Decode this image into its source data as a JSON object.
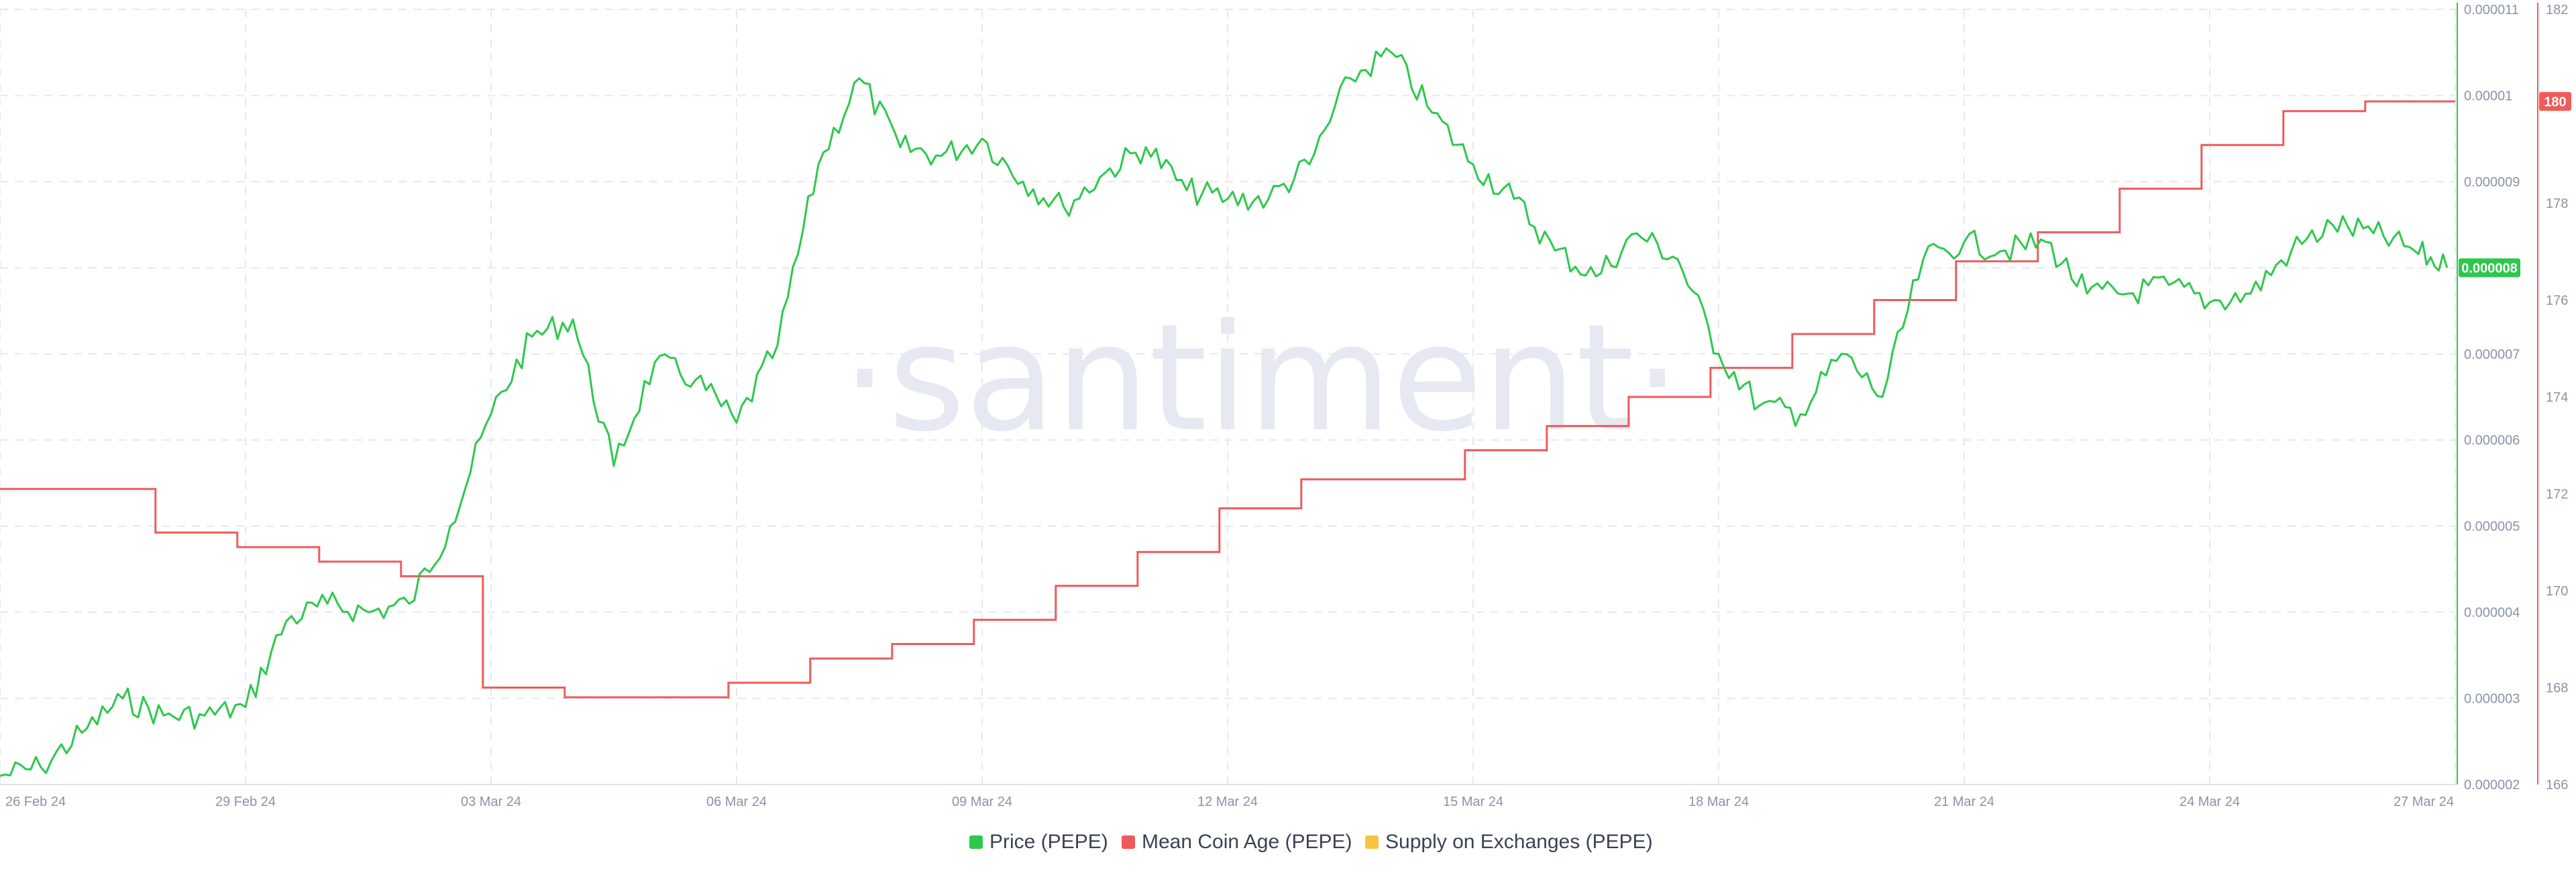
{
  "watermark": "·santiment·",
  "colors": {
    "price": "#2dc84d",
    "coin_age": "#f05a5a",
    "supply": "#f5c542",
    "grid": "#e6e8ee"
  },
  "legend": [
    {
      "label": "Price (PEPE)",
      "color": "#2dc84d"
    },
    {
      "label": "Mean Coin Age (PEPE)",
      "color": "#f05a5a"
    },
    {
      "label": "Supply on Exchanges (PEPE)",
      "color": "#f5c542"
    }
  ],
  "badges": {
    "price": "0.000008",
    "coin_age": "180"
  },
  "chart_data": {
    "type": "line",
    "x_ticks": [
      "26 Feb 24",
      "29 Feb 24",
      "03 Mar 24",
      "06 Mar 24",
      "09 Mar 24",
      "12 Mar 24",
      "15 Mar 24",
      "18 Mar 24",
      "21 Mar 24",
      "24 Mar 24",
      "27 Mar 24"
    ],
    "x_range": [
      "26 Feb 24",
      "27 Mar 24"
    ],
    "price_axis": {
      "ticks": [
        "0.000002",
        "0.000003",
        "0.000004",
        "0.000005",
        "0.000006",
        "0.000007",
        "0.000008",
        "0.000009",
        "0.00001",
        "0.000011"
      ],
      "range": [
        2e-06,
        1.1e-05
      ]
    },
    "coin_age_axis": {
      "ticks": [
        "166",
        "168",
        "170",
        "172",
        "174",
        "176",
        "178",
        "180",
        "182"
      ],
      "range": [
        166,
        182
      ]
    },
    "series": [
      {
        "name": "Price (PEPE)",
        "axis": "price",
        "x_days": [
          0,
          0.5,
          1.0,
          1.5,
          2.0,
          2.5,
          3.0,
          3.5,
          4.0,
          4.5,
          5.0,
          5.5,
          6.0,
          6.5,
          7.0,
          7.5,
          8.0,
          8.5,
          9.0,
          9.5,
          10.0,
          10.5,
          11.0,
          11.5,
          12.0,
          12.5,
          13.0,
          13.5,
          14.0,
          14.5,
          15.0,
          15.5,
          16.0,
          16.5,
          17.0,
          17.5,
          18.0,
          18.5,
          19.0,
          19.5,
          20.0,
          20.5,
          21.0,
          21.5,
          22.0,
          22.5,
          23.0,
          23.5,
          24.0,
          24.5,
          25.0,
          25.5,
          26.0,
          26.5,
          27.0,
          27.5,
          28.0,
          28.5,
          29.0,
          29.5,
          29.9
        ],
        "values": [
          2.1e-06,
          2.2e-06,
          2.6e-06,
          3e-06,
          2.8e-06,
          2.8e-06,
          2.9e-06,
          3.9e-06,
          4.1e-06,
          4e-06,
          4.1e-06,
          5e-06,
          6.3e-06,
          7.2e-06,
          7.4e-06,
          5.7e-06,
          6.9e-06,
          6.7e-06,
          6.2e-06,
          7.1e-06,
          9.2e-06,
          1.02e-05,
          9.4e-06,
          9.3e-06,
          9.5e-06,
          9e-06,
          8.7e-06,
          9.1e-06,
          9.4e-06,
          8.9e-06,
          8.8e-06,
          8.8e-06,
          9.2e-06,
          1.02e-05,
          1.05e-05,
          9.8e-06,
          9.2e-06,
          8.8e-06,
          8.2e-06,
          7.9e-06,
          8.4e-06,
          8.1e-06,
          7e-06,
          6.4e-06,
          6.3e-06,
          7e-06,
          6.5e-06,
          8.1e-06,
          8.3e-06,
          8.2e-06,
          8.3e-06,
          7.7e-06,
          7.7e-06,
          7.8e-06,
          7.6e-06,
          7.7e-06,
          8.2e-06,
          8.5e-06,
          8.4e-06,
          8.2e-06,
          8e-06
        ]
      },
      {
        "name": "Mean Coin Age (PEPE)",
        "axis": "coin_age",
        "step_starts_day": [
          0,
          1.9,
          2.9,
          3.9,
          4.9,
          5.9,
          6.9,
          7.9,
          8.9,
          9.9,
          10.9,
          11.9,
          12.9,
          13.9,
          14.9,
          15.9,
          16.9,
          17.9,
          18.9,
          19.9,
          20.9,
          21.9,
          22.9,
          23.9,
          24.9,
          25.9,
          26.9,
          27.9,
          28.9,
          29.9
        ],
        "values": [
          172.1,
          171.2,
          170.9,
          170.6,
          170.3,
          168.0,
          167.8,
          167.8,
          168.1,
          168.6,
          168.9,
          169.4,
          170.1,
          170.8,
          171.7,
          172.3,
          172.3,
          172.9,
          173.4,
          174.0,
          174.6,
          175.3,
          176.0,
          176.8,
          177.4,
          178.3,
          179.2,
          179.9,
          180.1,
          180.1
        ]
      },
      {
        "name": "Supply on Exchanges (PEPE)",
        "axis": "none",
        "values": []
      }
    ],
    "grid": true,
    "legend_position": "bottom"
  }
}
